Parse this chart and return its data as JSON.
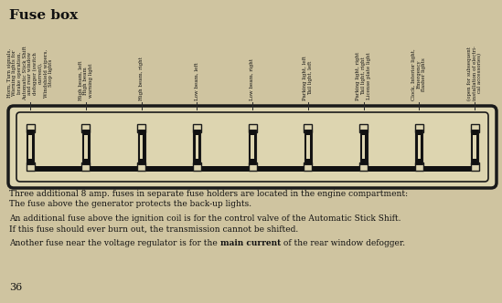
{
  "title": "Fuse box",
  "bg_color": "#cfc4a0",
  "fuse_labels": [
    "Horn, Turn signals,\nWarning lights for\nbrake operation,\nAutomatic Stick Shift\nand rear window\ndefogger (switch\ncurrent),\nWindshield wipers,\nStop lights",
    "High beam, left\nHigh beam\nwarning light",
    "High beam, right",
    "Low beam, left",
    "Low beam, right",
    "Parking light, left\nTail light, left",
    "Parking light, right\nTail light, right\nLicense plate light",
    "Clock, Interior light,\nEmergency\nflasher lights",
    "(open for subsequent\ninstallation of electri-\ncal accessories)"
  ],
  "body_text_1a": "Three additional 8 amp. fuses in separate fuse holders are located in the engine compartment:",
  "body_text_1b": "The fuse above the generator protects the back-up lights.",
  "body_text_2a": "An additional fuse above the ignition coil is for the control valve of the Automatic Stick Shift.",
  "body_text_2b": "If this fuse should ever burn out, the transmission cannot be shifted.",
  "body_text_3_pre": "Another fuse near the voltage regulator is for the ",
  "body_text_3_bold": "main current",
  "body_text_3_post": " of the rear window defogger.",
  "page_number": "36",
  "fuse_count": 9,
  "box_bg_color": "#ddd5b0",
  "box_border_color": "#1a1a1a",
  "fuse_dark_color": "#111111",
  "fuse_light_color": "#ddd5b0",
  "text_color": "#111111"
}
